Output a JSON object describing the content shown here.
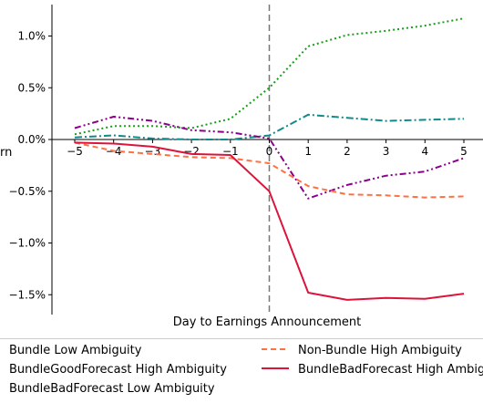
{
  "chart_data": {
    "type": "line",
    "xlabel": "Day to Earnings Announcement",
    "ylabel_fragment": "rn",
    "x": [
      -5,
      -4,
      -3,
      -2,
      -1,
      0,
      1,
      2,
      3,
      4,
      5
    ],
    "xlim": [
      -5.5,
      5.3
    ],
    "ylim": [
      -1.7,
      1.3
    ],
    "x_ticks": [
      -5,
      -4,
      -3,
      -2,
      -1,
      0,
      1,
      2,
      3,
      4,
      5
    ],
    "x_tick_labels": [
      "−5",
      "−4",
      "−3",
      "−2",
      "−1",
      "0",
      "1",
      "2",
      "3",
      "4",
      "5"
    ],
    "y_ticks": [
      1.0,
      0.5,
      0.0,
      -0.5,
      -1.0,
      -1.5
    ],
    "y_tick_labels": [
      "1.0%",
      "0.5%",
      "0.0%",
      "−0.5%",
      "−1.0%",
      "−1.5%"
    ],
    "event_line_x": 0,
    "grid": false,
    "legend_position": "bottom",
    "series": [
      {
        "id": "dotted-green",
        "color": "#1a9e1a",
        "dash": "2,3",
        "width": 2,
        "values": [
          0.05,
          0.13,
          0.13,
          0.11,
          0.2,
          0.5,
          0.9,
          1.01,
          1.05,
          1.1,
          1.17
        ]
      },
      {
        "id": "dashdot-teal",
        "color": "#138a8a",
        "dash": "8,3,2,3",
        "width": 2,
        "values": [
          0.02,
          0.04,
          0.01,
          0.0,
          0.0,
          0.04,
          0.24,
          0.21,
          0.18,
          0.19,
          0.2
        ]
      },
      {
        "id": "dashdotdot-purple",
        "color": "#8b008b",
        "dash": "7,3,2,3,2,3",
        "width": 2,
        "values": [
          0.11,
          0.22,
          0.18,
          0.09,
          0.07,
          0.01,
          -0.57,
          -0.44,
          -0.35,
          -0.31,
          -0.18
        ]
      },
      {
        "name": "Non-Bundle High Ambiguity",
        "color": "#ff7043",
        "dash": "6,4",
        "width": 2,
        "values": [
          -0.03,
          -0.11,
          -0.14,
          -0.17,
          -0.18,
          -0.23,
          -0.45,
          -0.53,
          -0.54,
          -0.56,
          -0.55
        ]
      },
      {
        "name": "BundleBadForecast High Ambiguity",
        "color": "#dc143c",
        "dash": "",
        "width": 2,
        "values": [
          -0.03,
          -0.04,
          -0.07,
          -0.14,
          -0.15,
          -0.5,
          -1.48,
          -1.55,
          -1.53,
          -1.54,
          -1.49
        ]
      }
    ],
    "legend": [
      {
        "label": "Bundle Low Ambiguity",
        "series": null
      },
      {
        "label": "Non-Bundle High Ambiguity",
        "series": 3
      },
      {
        "label": "BundleGoodForecast High Ambiguity",
        "series": null
      },
      {
        "label": "BundleBadForecast High Ambiguity",
        "series": 4
      },
      {
        "label": "BundleBadForecast Low Ambiguity",
        "series": null
      }
    ]
  }
}
